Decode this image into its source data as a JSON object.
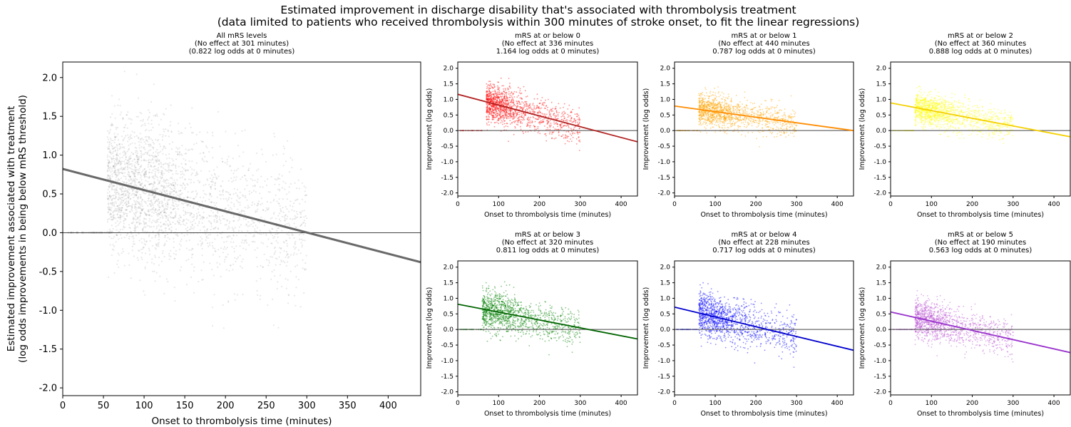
{
  "figure": {
    "title_line1": "Estimated improvement in discharge disability that's associated with thrombolysis treatment",
    "title_line2": "(data limited to patients who received thrombolysis within 300 minutes of stroke onset, to fit the linear regressions)"
  },
  "chart_data": [
    {
      "type": "scatter",
      "title_lines": [
        "All mRS levels",
        "(No effect at 301 minutes)",
        "(0.822 log odds at 0 minutes)"
      ],
      "xlabel": "Onset to thrombolysis time (minutes)",
      "ylabel_lines": [
        "Estimated improvement associated with treatment",
        "(log odds improvements in being below mRS threshold)"
      ],
      "xlim": [
        0,
        440
      ],
      "ylim": [
        -2.1,
        2.2
      ],
      "xticks": [
        0,
        50,
        100,
        150,
        200,
        250,
        300,
        350,
        400
      ],
      "yticks": [
        -2.0,
        -1.5,
        -1.0,
        -0.5,
        0.0,
        0.5,
        1.0,
        1.5,
        2.0
      ],
      "point_color": "#808080",
      "line_color": "#696969",
      "regression": {
        "intercept": 0.822,
        "zero_effect_minutes": 301
      },
      "scatter": {
        "x_range": [
          55,
          300
        ],
        "y_spread": 0.45,
        "n_points": 2600
      }
    },
    {
      "type": "scatter",
      "title_lines": [
        "mRS at or below 0",
        "(No effect at 336 minutes",
        "1.164 log odds at 0 minutes)"
      ],
      "xlabel": "Onset to thrombolysis time (minutes)",
      "ylabel": "Improvement (log odds)",
      "xlim": [
        0,
        440
      ],
      "ylim": [
        -2.1,
        2.2
      ],
      "xticks": [
        0,
        100,
        200,
        300,
        400
      ],
      "yticks": [
        -2.0,
        -1.5,
        -1.0,
        -0.5,
        0.0,
        0.5,
        1.0,
        1.5,
        2.0
      ],
      "point_color": "#ff0000",
      "line_color": "#b22222",
      "regression": {
        "intercept": 1.164,
        "zero_effect_minutes": 336
      },
      "scatter": {
        "x_range": [
          70,
          300
        ],
        "y_spread": 0.3,
        "n_points": 1300
      }
    },
    {
      "type": "scatter",
      "title_lines": [
        "mRS at or below 1",
        "(No effect at 440 minutes",
        "0.787 log odds at 0 minutes)"
      ],
      "xlabel": "Onset to thrombolysis time (minutes)",
      "ylabel": "Improvement (log odds)",
      "xlim": [
        0,
        440
      ],
      "ylim": [
        -2.1,
        2.2
      ],
      "xticks": [
        0,
        100,
        200,
        300,
        400
      ],
      "yticks": [
        -2.0,
        -1.5,
        -1.0,
        -0.5,
        0.0,
        0.5,
        1.0,
        1.5,
        2.0
      ],
      "point_color": "#ffa500",
      "line_color": "#ff8c00",
      "regression": {
        "intercept": 0.787,
        "zero_effect_minutes": 440
      },
      "scatter": {
        "x_range": [
          60,
          300
        ],
        "y_spread": 0.25,
        "n_points": 1300
      }
    },
    {
      "type": "scatter",
      "title_lines": [
        "mRS at or below 2",
        "(No effect at 360 minutes",
        "0.888 log odds at 0 minutes)"
      ],
      "xlabel": "Onset to thrombolysis time (minutes)",
      "ylabel": "Improvement (log odds)",
      "xlim": [
        0,
        440
      ],
      "ylim": [
        -2.1,
        2.2
      ],
      "xticks": [
        0,
        100,
        200,
        300,
        400
      ],
      "yticks": [
        -2.0,
        -1.5,
        -1.0,
        -0.5,
        0.0,
        0.5,
        1.0,
        1.5,
        2.0
      ],
      "point_color": "#ffff00",
      "line_color": "#f5d000",
      "regression": {
        "intercept": 0.888,
        "zero_effect_minutes": 360
      },
      "scatter": {
        "x_range": [
          60,
          300
        ],
        "y_spread": 0.25,
        "n_points": 1300
      }
    },
    {
      "type": "scatter",
      "title_lines": [
        "mRS at or below 3",
        "(No effect at 320 minutes",
        "0.811 log odds at 0 minutes)"
      ],
      "xlabel": "Onset to thrombolysis time (minutes)",
      "ylabel": "Improvement (log odds)",
      "xlim": [
        0,
        440
      ],
      "ylim": [
        -2.1,
        2.2
      ],
      "xticks": [
        0,
        100,
        200,
        300,
        400
      ],
      "yticks": [
        -2.0,
        -1.5,
        -1.0,
        -0.5,
        0.0,
        0.5,
        1.0,
        1.5,
        2.0
      ],
      "point_color": "#008000",
      "line_color": "#006400",
      "regression": {
        "intercept": 0.811,
        "zero_effect_minutes": 320
      },
      "scatter": {
        "x_range": [
          60,
          300
        ],
        "y_spread": 0.3,
        "n_points": 1300
      }
    },
    {
      "type": "scatter",
      "title_lines": [
        "mRS at or below 4",
        "(No effect at 228 minutes",
        "0.717 log odds at 0 minutes)"
      ],
      "xlabel": "Onset to thrombolysis time (minutes)",
      "ylabel": "Improvement (log odds)",
      "xlim": [
        0,
        440
      ],
      "ylim": [
        -2.1,
        2.2
      ],
      "xticks": [
        0,
        100,
        200,
        300,
        400
      ],
      "yticks": [
        -2.0,
        -1.5,
        -1.0,
        -0.5,
        0.0,
        0.5,
        1.0,
        1.5,
        2.0
      ],
      "point_color": "#0000ff",
      "line_color": "#0000cd",
      "regression": {
        "intercept": 0.717,
        "zero_effect_minutes": 228
      },
      "scatter": {
        "x_range": [
          60,
          300
        ],
        "y_spread": 0.35,
        "n_points": 1300
      }
    },
    {
      "type": "scatter",
      "title_lines": [
        "mRS at or below 5",
        "(No effect at 190 minutes",
        "0.563 log odds at 0 minutes)"
      ],
      "xlabel": "Onset to thrombolysis time (minutes)",
      "ylabel": "Improvement (log odds)",
      "xlim": [
        0,
        440
      ],
      "ylim": [
        -2.1,
        2.2
      ],
      "xticks": [
        0,
        100,
        200,
        300,
        400
      ],
      "yticks": [
        -2.0,
        -1.5,
        -1.0,
        -0.5,
        0.0,
        0.5,
        1.0,
        1.5,
        2.0
      ],
      "point_color": "#ba55d3",
      "line_color": "#9932cc",
      "regression": {
        "intercept": 0.563,
        "zero_effect_minutes": 190
      },
      "scatter": {
        "x_range": [
          60,
          300
        ],
        "y_spread": 0.3,
        "n_points": 1300
      }
    }
  ]
}
